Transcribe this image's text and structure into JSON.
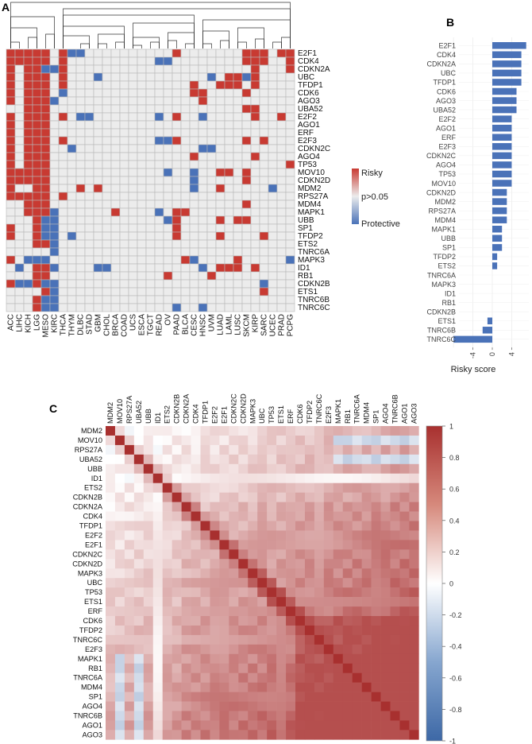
{
  "panels": {
    "a": "A",
    "b": "B",
    "c": "C"
  },
  "chart_data": [
    {
      "type": "heatmap",
      "panel": "A",
      "columns": [
        "ACC",
        "LIHC",
        "KICH",
        "LGG",
        "MESO",
        "KIRC",
        "THCA",
        "THYM",
        "DLBC",
        "STAD",
        "GBM",
        "CHOL",
        "BRCA",
        "COAD",
        "UCS",
        "ESCA",
        "TGCT",
        "READ",
        "OV",
        "PAAD",
        "BLCA",
        "CESC",
        "HNSC",
        "UVM",
        "LUAD",
        "LAML",
        "LUSC",
        "SKCM",
        "KIRP",
        "SARC",
        "UCEC",
        "PRAD",
        "PCPG"
      ],
      "rows": [
        "E2F1",
        "CDK4",
        "CDKN2A",
        "UBC",
        "TFDP1",
        "CDK6",
        "AGO3",
        "UBA52",
        "E2F2",
        "AGO1",
        "ERF",
        "E2F3",
        "CDKN2C",
        "AGO4",
        "TP53",
        "MOV10",
        "CDKN2D",
        "MDM2",
        "RPS27A",
        "MDM4",
        "MAPK1",
        "UBB",
        "SP1",
        "TFDP2",
        "ETS2",
        "TNRC6A",
        "MAPK3",
        "ID1",
        "RB1",
        "CDKN2B",
        "ETS1",
        "TNRC6B",
        "TNRC6C"
      ],
      "cell_encoding": "1 = Risky, 0 = p>0.05, -1 = Protective",
      "values": [
        [
          1,
          1,
          1,
          1,
          1,
          0,
          1,
          -1,
          -1,
          0,
          0,
          0,
          0,
          0,
          0,
          0,
          0,
          0,
          0,
          1,
          0,
          0,
          0,
          0,
          0,
          0,
          0,
          1,
          1,
          1,
          0,
          1,
          1
        ],
        [
          1,
          1,
          1,
          1,
          1,
          0,
          1,
          0,
          0,
          0,
          0,
          0,
          0,
          0,
          0,
          0,
          0,
          -1,
          -1,
          0,
          0,
          0,
          0,
          0,
          0,
          0,
          0,
          1,
          1,
          1,
          0,
          0,
          1
        ],
        [
          1,
          0,
          1,
          1,
          -1,
          -1,
          1,
          0,
          0,
          0,
          0,
          0,
          0,
          0,
          0,
          0,
          0,
          0,
          0,
          0,
          0,
          0,
          0,
          0,
          0,
          0,
          0,
          0,
          1,
          0,
          0,
          0,
          1
        ],
        [
          1,
          0,
          1,
          1,
          1,
          0,
          1,
          0,
          0,
          0,
          -1,
          0,
          0,
          0,
          0,
          0,
          0,
          0,
          0,
          0,
          0,
          0,
          0,
          -1,
          0,
          1,
          1,
          -1,
          1,
          0,
          0,
          0,
          0
        ],
        [
          1,
          0,
          1,
          1,
          1,
          0,
          1,
          0,
          0,
          0,
          0,
          0,
          0,
          0,
          0,
          0,
          0,
          0,
          0,
          0,
          0,
          1,
          0,
          0,
          1,
          1,
          1,
          0,
          1,
          0,
          0,
          0,
          0
        ],
        [
          1,
          0,
          1,
          1,
          1,
          0,
          -1,
          0,
          0,
          0,
          0,
          0,
          0,
          0,
          0,
          0,
          0,
          0,
          0,
          0,
          0,
          1,
          1,
          0,
          0,
          0,
          0,
          1,
          0,
          0,
          0,
          0,
          0
        ],
        [
          1,
          0,
          1,
          1,
          1,
          -1,
          0,
          0,
          0,
          0,
          0,
          0,
          0,
          0,
          0,
          0,
          0,
          0,
          0,
          0,
          0,
          0,
          1,
          0,
          0,
          0,
          0,
          0,
          0,
          0,
          0,
          0,
          0
        ],
        [
          0,
          0,
          1,
          1,
          1,
          0,
          0,
          0,
          0,
          0,
          0,
          0,
          0,
          0,
          0,
          0,
          0,
          0,
          0,
          0,
          0,
          0,
          0,
          0,
          0,
          0,
          0,
          1,
          1,
          0,
          0,
          0,
          0
        ],
        [
          1,
          0,
          1,
          1,
          1,
          0,
          1,
          0,
          -1,
          -1,
          0,
          0,
          0,
          0,
          0,
          0,
          0,
          -1,
          0,
          1,
          0,
          0,
          -1,
          0,
          0,
          0,
          0,
          0,
          1,
          0,
          0,
          1,
          0
        ],
        [
          1,
          0,
          1,
          1,
          1,
          0,
          0,
          0,
          0,
          0,
          0,
          0,
          0,
          0,
          0,
          0,
          0,
          0,
          0,
          0,
          0,
          0,
          0,
          0,
          0,
          0,
          0,
          0,
          0,
          0,
          0,
          0,
          0
        ],
        [
          1,
          0,
          1,
          1,
          1,
          0,
          0,
          0,
          0,
          0,
          0,
          0,
          0,
          0,
          0,
          0,
          0,
          0,
          0,
          0,
          0,
          0,
          0,
          0,
          0,
          0,
          0,
          0,
          0,
          0,
          0,
          0,
          0
        ],
        [
          1,
          0,
          1,
          1,
          1,
          0,
          1,
          0,
          0,
          0,
          0,
          0,
          0,
          0,
          0,
          0,
          0,
          -1,
          -1,
          1,
          0,
          0,
          0,
          0,
          0,
          0,
          0,
          1,
          0,
          1,
          0,
          0,
          0
        ],
        [
          1,
          0,
          1,
          1,
          1,
          0,
          0,
          -1,
          0,
          0,
          0,
          0,
          0,
          0,
          0,
          0,
          0,
          0,
          0,
          0,
          0,
          0,
          -1,
          -1,
          0,
          0,
          0,
          0,
          0,
          0,
          0,
          0,
          0
        ],
        [
          1,
          0,
          1,
          1,
          1,
          0,
          0,
          0,
          0,
          0,
          0,
          0,
          0,
          0,
          0,
          0,
          0,
          0,
          0,
          0,
          0,
          1,
          0,
          0,
          0,
          0,
          0,
          0,
          1,
          0,
          0,
          0,
          0
        ],
        [
          1,
          0,
          1,
          1,
          1,
          0,
          0,
          0,
          0,
          0,
          0,
          0,
          0,
          0,
          0,
          0,
          0,
          0,
          0,
          0,
          0,
          0,
          0,
          0,
          0,
          0,
          0,
          0,
          0,
          0,
          0,
          0,
          1
        ],
        [
          1,
          1,
          1,
          1,
          1,
          0,
          0,
          0,
          0,
          0,
          0,
          0,
          0,
          0,
          0,
          0,
          0,
          0,
          -1,
          0,
          0,
          -1,
          0,
          0,
          1,
          1,
          0,
          1,
          0,
          0,
          0,
          0,
          0
        ],
        [
          1,
          1,
          1,
          1,
          1,
          0,
          0,
          0,
          0,
          0,
          0,
          0,
          0,
          0,
          0,
          0,
          0,
          0,
          0,
          0,
          0,
          -1,
          0,
          0,
          0,
          0,
          0,
          1,
          0,
          0,
          0,
          0,
          0
        ],
        [
          1,
          0,
          0,
          1,
          1,
          0,
          0,
          0,
          1,
          0,
          1,
          0,
          0,
          0,
          0,
          0,
          0,
          0,
          0,
          0,
          0,
          -1,
          0,
          0,
          1,
          0,
          0,
          0,
          0,
          0,
          -1,
          0,
          0
        ],
        [
          1,
          1,
          1,
          1,
          1,
          0,
          1,
          0,
          0,
          0,
          0,
          0,
          0,
          0,
          0,
          0,
          0,
          0,
          0,
          0,
          0,
          0,
          0,
          0,
          0,
          0,
          0,
          0,
          0,
          0,
          0,
          0,
          0
        ],
        [
          0,
          0,
          1,
          1,
          1,
          0,
          0,
          0,
          0,
          0,
          0,
          0,
          0,
          0,
          0,
          0,
          0,
          0,
          0,
          0,
          0,
          0,
          0,
          0,
          0,
          0,
          0,
          1,
          0,
          0,
          0,
          0,
          0
        ],
        [
          0,
          0,
          1,
          1,
          1,
          -1,
          0,
          0,
          0,
          0,
          0,
          0,
          1,
          0,
          0,
          0,
          0,
          -1,
          0,
          1,
          1,
          0,
          0,
          0,
          0,
          0,
          0,
          0,
          0,
          0,
          0,
          0,
          0
        ],
        [
          0,
          0,
          0,
          1,
          -1,
          -1,
          0,
          0,
          0,
          0,
          0,
          0,
          0,
          0,
          0,
          0,
          0,
          0,
          -1,
          1,
          0,
          0,
          0,
          0,
          1,
          0,
          1,
          1,
          0,
          0,
          0,
          0,
          0
        ],
        [
          1,
          0,
          0,
          1,
          -1,
          -1,
          0,
          0,
          0,
          0,
          0,
          0,
          0,
          0,
          0,
          0,
          0,
          0,
          0,
          1,
          0,
          0,
          0,
          0,
          0,
          0,
          0,
          0,
          0,
          0,
          0,
          0,
          0
        ],
        [
          1,
          0,
          0,
          1,
          -1,
          -1,
          0,
          -1,
          0,
          0,
          0,
          0,
          0,
          0,
          0,
          0,
          0,
          0,
          0,
          1,
          0,
          0,
          0,
          0,
          1,
          0,
          0,
          0,
          0,
          1,
          0,
          0,
          0
        ],
        [
          0,
          0,
          0,
          1,
          1,
          -1,
          0,
          0,
          0,
          0,
          0,
          0,
          0,
          0,
          0,
          0,
          0,
          0,
          0,
          0,
          0,
          0,
          0,
          0,
          0,
          0,
          0,
          0,
          0,
          0,
          0,
          0,
          0
        ],
        [
          0,
          0,
          0,
          0,
          0,
          -1,
          0,
          0,
          0,
          0,
          0,
          0,
          0,
          0,
          0,
          0,
          0,
          0,
          0,
          0,
          0,
          0,
          0,
          0,
          0,
          0,
          0,
          0,
          0,
          0,
          0,
          0,
          0
        ],
        [
          1,
          0,
          -1,
          -1,
          -1,
          0,
          0,
          0,
          0,
          0,
          0,
          0,
          0,
          0,
          0,
          0,
          0,
          0,
          0,
          0,
          1,
          -1,
          0,
          0,
          0,
          0,
          1,
          0,
          0,
          0,
          0,
          0,
          -1
        ],
        [
          0,
          -1,
          0,
          1,
          1,
          -1,
          0,
          0,
          0,
          0,
          -1,
          -1,
          0,
          0,
          0,
          0,
          0,
          0,
          0,
          0,
          0,
          0,
          -1,
          0,
          1,
          1,
          1,
          0,
          1,
          0,
          0,
          0,
          0
        ],
        [
          0,
          0,
          0,
          1,
          1,
          0,
          0,
          0,
          0,
          0,
          0,
          0,
          0,
          0,
          0,
          0,
          0,
          0,
          1,
          0,
          0,
          0,
          0,
          1,
          0,
          0,
          0,
          0,
          0,
          0,
          0,
          0,
          0
        ],
        [
          1,
          -1,
          -1,
          1,
          -1,
          -1,
          0,
          0,
          0,
          0,
          0,
          0,
          0,
          0,
          0,
          0,
          0,
          0,
          0,
          0,
          0,
          0,
          0,
          0,
          0,
          0,
          0,
          0,
          0,
          -1,
          0,
          0,
          0
        ],
        [
          0,
          0,
          0,
          0,
          1,
          -1,
          0,
          0,
          0,
          0,
          0,
          0,
          0,
          0,
          0,
          0,
          0,
          0,
          0,
          0,
          0,
          0,
          0,
          0,
          0,
          0,
          0,
          0,
          0,
          1,
          0,
          0,
          0
        ],
        [
          0,
          0,
          0,
          1,
          -1,
          -1,
          0,
          0,
          0,
          0,
          0,
          0,
          0,
          0,
          0,
          0,
          0,
          0,
          0,
          0,
          0,
          0,
          0,
          0,
          0,
          0,
          0,
          0,
          0,
          0,
          0,
          0,
          0
        ],
        [
          0,
          0,
          0,
          1,
          -1,
          -1,
          0,
          0,
          0,
          0,
          0,
          0,
          0,
          0,
          0,
          0,
          0,
          0,
          0,
          -1,
          0,
          0,
          -1,
          0,
          0,
          0,
          0,
          0,
          0,
          0,
          0,
          0,
          0
        ]
      ],
      "legend": {
        "high": "Risky",
        "mid": "p>0.05",
        "low": "Protective"
      },
      "colors": {
        "risky": "#c83a32",
        "neutral": "#ececec",
        "protective": "#4a72b8",
        "grid": "#b8b8b8"
      },
      "dendrogram": "top"
    },
    {
      "type": "bar",
      "panel": "B",
      "orientation": "horizontal",
      "categories": [
        "E2F1",
        "CDK4",
        "CDKN2A",
        "UBC",
        "TFDP1",
        "CDK6",
        "AGO3",
        "UBA52",
        "E2F2",
        "AGO1",
        "ERF",
        "E2F3",
        "CDKN2C",
        "AGO4",
        "TP53",
        "MOV10",
        "CDKN2D",
        "MDM2",
        "RPS27A",
        "MDM4",
        "MAPK1",
        "UBB",
        "SP1",
        "TFDP2",
        "ETS2",
        "TNRC6A",
        "MAPK3",
        "ID1",
        "RB1",
        "CDKN2B",
        "ETS1",
        "TNRC6B",
        "TNRC6C"
      ],
      "values": [
        7,
        6,
        6,
        6,
        6,
        5,
        5,
        5,
        4,
        4,
        4,
        4,
        4,
        4,
        4,
        4,
        3,
        3,
        3,
        3,
        2,
        2,
        2,
        1,
        1,
        0,
        0,
        0,
        0,
        0,
        -1,
        -2,
        -8
      ],
      "xlabel": "Risky score",
      "xticks": [
        "-4",
        "0",
        "4"
      ],
      "xlim": [
        -8,
        7
      ],
      "bar_color": "#4a72b8"
    },
    {
      "type": "heatmap",
      "panel": "C",
      "genes": [
        "MDM2",
        "MOV10",
        "RPS27A",
        "UBA52",
        "UBB",
        "ID1",
        "ETS2",
        "CDKN2B",
        "CDKN2A",
        "CDK4",
        "TFDP1",
        "E2F2",
        "E2F1",
        "CDKN2C",
        "CDKN2D",
        "MAPK3",
        "UBC",
        "TP53",
        "ETS1",
        "ERF",
        "CDK6",
        "TFDP2",
        "TNRC6C",
        "E2F3",
        "MAPK1",
        "RB1",
        "TNRC6A",
        "MDM4",
        "SP1",
        "AGO4",
        "TNRC6B",
        "AGO1",
        "AGO3"
      ],
      "colorbar_ticks": [
        "1",
        "0.8",
        "0.6",
        "0.4",
        "0.2",
        "0",
        "-0.2",
        "-0.4",
        "-0.6",
        "-0.8",
        "-1"
      ],
      "color_range": [
        -1,
        1
      ],
      "colors": {
        "positive": "#a8302f",
        "zero": "#ffffff",
        "negative": "#3d68a6"
      }
    }
  ]
}
